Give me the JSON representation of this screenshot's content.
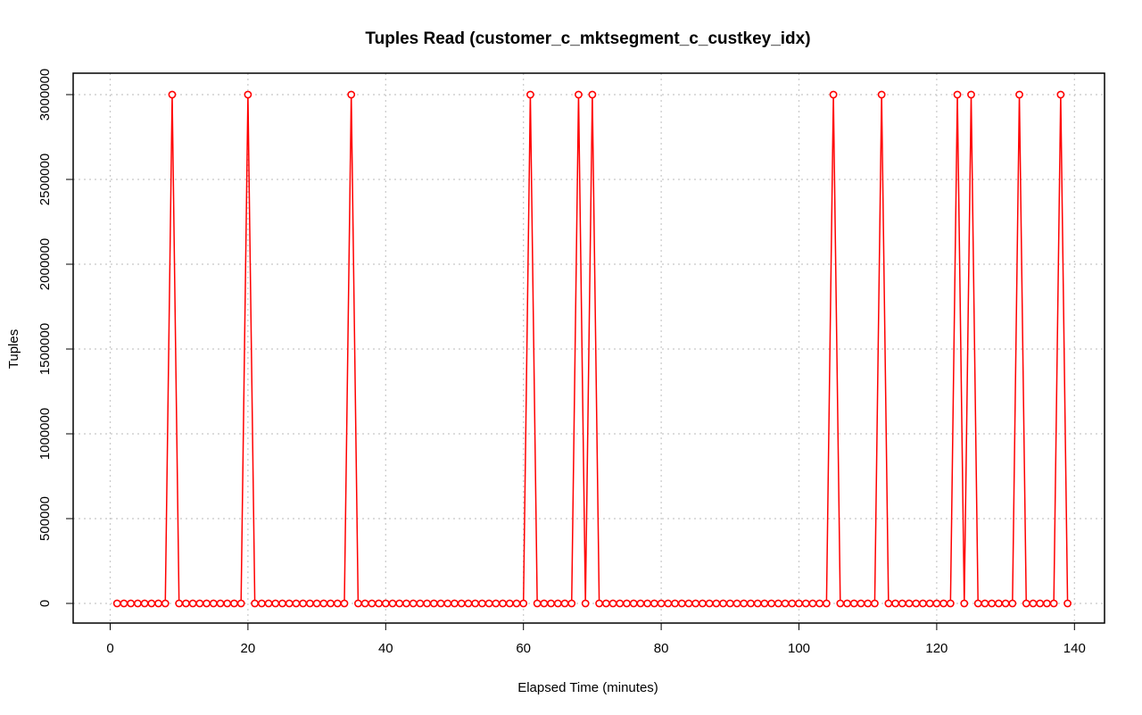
{
  "chart_data": {
    "type": "line",
    "title": "Tuples Read (customer_c_mktsegment_c_custkey_idx)",
    "xlabel": "Elapsed Time (minutes)",
    "ylabel": "Tuples",
    "xlim": [
      0,
      140
    ],
    "ylim": [
      0,
      3000000
    ],
    "x_ticks": [
      0,
      20,
      40,
      60,
      80,
      100,
      120,
      140
    ],
    "y_ticks": [
      0,
      500000,
      1000000,
      1500000,
      2000000,
      2500000,
      3000000
    ],
    "x_tick_labels": [
      "0",
      "20",
      "40",
      "60",
      "80",
      "100",
      "120",
      "140"
    ],
    "y_tick_labels": [
      "0",
      "500000",
      "1000000",
      "1500000",
      "2000000",
      "2500000",
      "3000000"
    ],
    "grid": true,
    "series_color": "#ff0000",
    "x_start": 1,
    "x_end": 139,
    "peak_value": 3000000,
    "baseline_value": 0,
    "peak_x": [
      9,
      20,
      35,
      61,
      68,
      70,
      105,
      112,
      123,
      125,
      132,
      138
    ]
  }
}
